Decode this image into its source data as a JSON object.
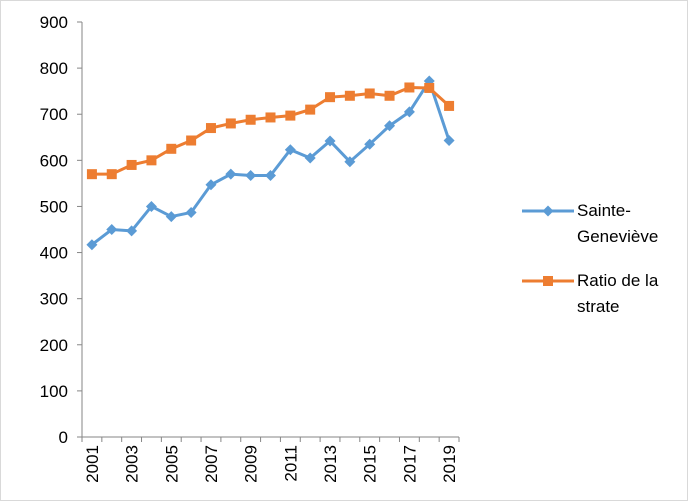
{
  "chart_data": {
    "type": "line",
    "categories": [
      "2001",
      null,
      "2003",
      null,
      "2005",
      null,
      "2007",
      null,
      "2009",
      null,
      "2011",
      null,
      "2013",
      null,
      "2015",
      null,
      "2017",
      null,
      "2019"
    ],
    "series": [
      {
        "name": "Sainte-Geneviève",
        "color": "#5b9bd5",
        "marker": "diamond",
        "values": [
          417,
          450,
          447,
          500,
          478,
          487,
          547,
          570,
          567,
          567,
          623,
          605,
          642,
          597,
          635,
          675,
          705,
          772,
          643
        ]
      },
      {
        "name": "Ratio de la strate",
        "color": "#ed7d31",
        "marker": "square",
        "values": [
          570,
          570,
          590,
          600,
          625,
          643,
          670,
          680,
          688,
          693,
          697,
          710,
          737,
          740,
          745,
          740,
          758,
          757,
          718
        ]
      }
    ],
    "ylim": [
      0,
      900
    ],
    "yticks": [
      0,
      100,
      200,
      300,
      400,
      500,
      600,
      700,
      800,
      900
    ],
    "grid": false,
    "legend": "right"
  }
}
